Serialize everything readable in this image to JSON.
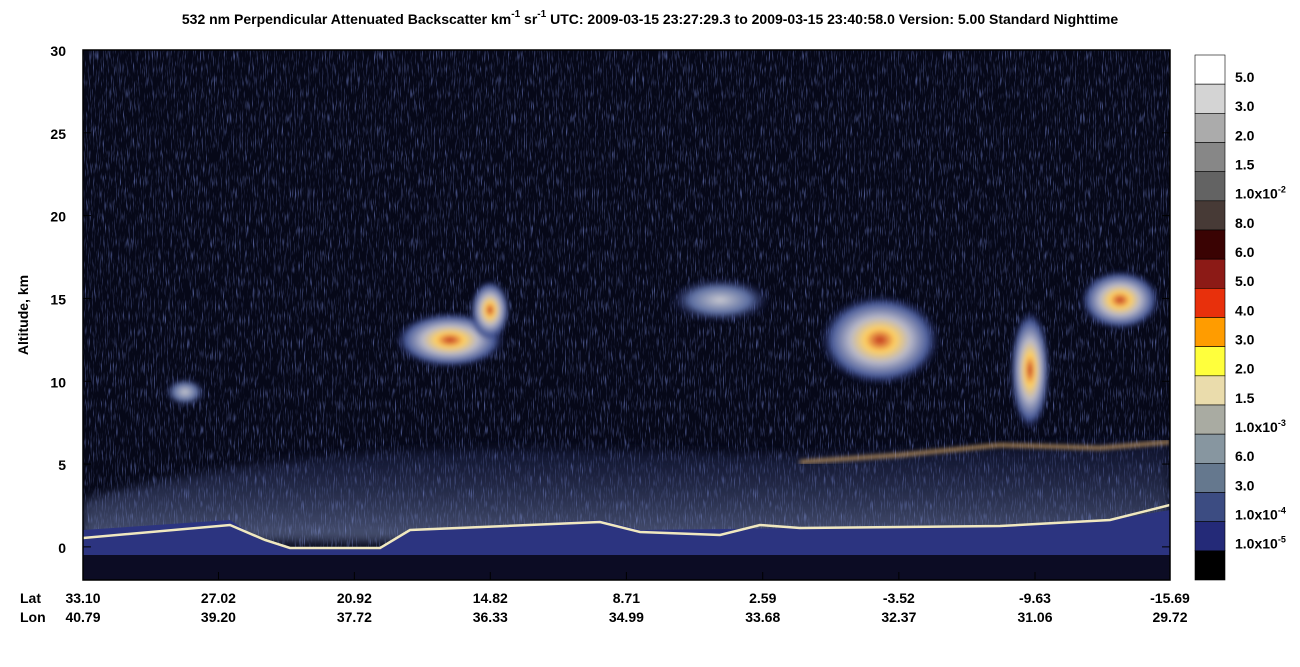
{
  "chart_data": {
    "type": "curtain",
    "title_parts": [
      "532 nm Perpendicular Attenuated Backscatter km",
      "-1",
      " sr",
      "-1",
      "  UTC: 2009-03-15 23:27:29.3 to 2009-03-15 23:40:58.0  Version: 5.00 Standard Nighttime"
    ],
    "ylabel": "Altitude, km",
    "ylim": [
      -2,
      30
    ],
    "yticks": [
      0,
      5,
      10,
      15,
      20,
      25,
      30
    ],
    "xlim": [
      33.1,
      -15.69
    ],
    "x_row_labels": [
      "Lat",
      "Lon"
    ],
    "xticks": [
      {
        "value": 33.1,
        "label": "33.10"
      },
      {
        "value": 27.02,
        "label": "27.02"
      },
      {
        "value": 20.92,
        "label": "20.92"
      },
      {
        "value": 14.82,
        "label": "14.82"
      },
      {
        "value": 8.71,
        "label": "8.71"
      },
      {
        "value": 2.59,
        "label": "2.59"
      },
      {
        "value": -3.52,
        "label": "-3.52"
      },
      {
        "value": -9.63,
        "label": "-9.63"
      },
      {
        "value": -15.69,
        "label": "-15.69"
      }
    ],
    "lon_labels": [
      "40.79",
      "39.20",
      "37.72",
      "36.33",
      "34.99",
      "33.68",
      "32.37",
      "31.06",
      "29.72"
    ],
    "colorbar": {
      "colors": [
        "#ffffff",
        "#d4d4d4",
        "#ababab",
        "#878787",
        "#636363",
        "#473a36",
        "#3a0303",
        "#8c1a16",
        "#e8300c",
        "#ff9c00",
        "#ffff3c",
        "#eadcac",
        "#a9aba2",
        "#8796a0",
        "#65788e",
        "#3c4c82",
        "#242a78",
        "#000000"
      ],
      "labels": [
        {
          "text": "5.0"
        },
        {
          "text": "3.0"
        },
        {
          "text": "2.0"
        },
        {
          "text": "1.5"
        },
        {
          "text": "1.0x10",
          "exp": "-2"
        },
        {
          "text": "8.0"
        },
        {
          "text": "6.0"
        },
        {
          "text": "5.0"
        },
        {
          "text": "4.0"
        },
        {
          "text": "3.0"
        },
        {
          "text": "2.0"
        },
        {
          "text": "1.5"
        },
        {
          "text": "1.0x10",
          "exp": "-3"
        },
        {
          "text": "6.0"
        },
        {
          "text": "3.0"
        },
        {
          "text": "1.0x10",
          "exp": "-4"
        },
        {
          "text": "1.0x10",
          "exp": "-5"
        }
      ]
    }
  }
}
